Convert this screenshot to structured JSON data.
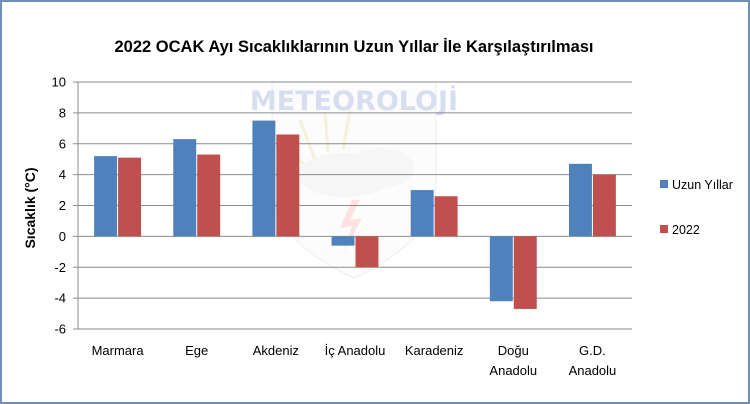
{
  "chart_data": {
    "type": "bar",
    "title": "2022 OCAK Ayı Sıcaklıklarının Uzun Yıllar İle Karşılaştırılması",
    "xlabel": "",
    "ylabel": "Sıcaklık (°C)",
    "ylim": [
      -6,
      10
    ],
    "yticks": [
      -6,
      -4,
      -2,
      0,
      2,
      4,
      6,
      8,
      10
    ],
    "grid": true,
    "legend_position": "right",
    "categories": [
      [
        "Marmara"
      ],
      [
        "Ege"
      ],
      [
        "Akdeniz"
      ],
      [
        "İç Anadolu"
      ],
      [
        "Karadeniz"
      ],
      [
        "Doğu",
        "Anadolu"
      ],
      [
        "G.D.",
        "Anadolu"
      ]
    ],
    "series": [
      {
        "name": "Uzun Yıllar",
        "color": "#4f81bd",
        "values": [
          5.2,
          6.3,
          7.5,
          -0.6,
          3.0,
          -4.2,
          4.7
        ]
      },
      {
        "name": "2022",
        "color": "#c0504d",
        "values": [
          5.1,
          5.3,
          6.6,
          -2.0,
          2.6,
          -4.7,
          4.0
        ]
      }
    ]
  },
  "watermark": {
    "text": "METEOROLOJİ"
  }
}
